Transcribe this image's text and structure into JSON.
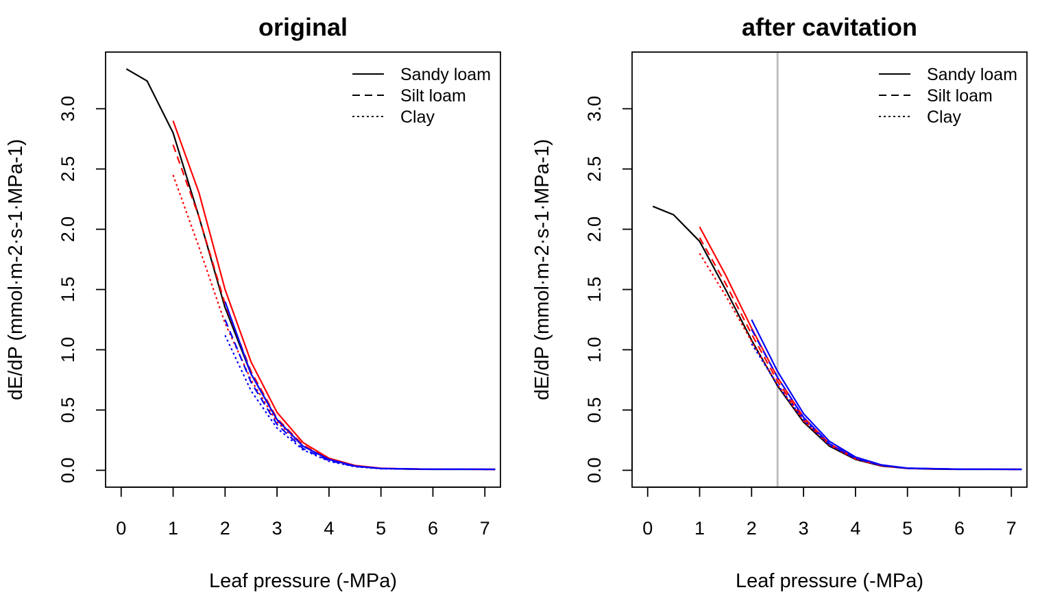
{
  "chart_data": [
    {
      "type": "line",
      "title": "original",
      "xlabel": "Leaf pressure (-MPa)",
      "ylabel": "dE/dP (mmol·m-2·s-1·MPa-1)",
      "xlim": [
        -0.3,
        7.3
      ],
      "ylim": [
        -0.14,
        3.47
      ],
      "xticks": [
        "0",
        "1",
        "2",
        "3",
        "4",
        "5",
        "6",
        "7"
      ],
      "yticks": [
        "0.0",
        "0.5",
        "1.0",
        "1.5",
        "2.0",
        "2.5",
        "3.0"
      ],
      "legend": {
        "position": "top-right",
        "entries": [
          {
            "label": "Sandy loam",
            "linestyle": "solid"
          },
          {
            "label": "Silt loam",
            "linestyle": "dashed"
          },
          {
            "label": "Clay",
            "linestyle": "dotted"
          }
        ]
      },
      "series": [
        {
          "color": "#000000",
          "linestyle": "solid",
          "x": [
            0.1,
            0.5,
            1,
            1.5,
            2,
            2.5,
            3,
            3.5,
            4,
            4.5,
            5,
            5.5,
            6,
            6.5,
            7.2
          ],
          "y": [
            3.33,
            3.23,
            2.8,
            2.1,
            1.35,
            0.8,
            0.42,
            0.2,
            0.09,
            0.035,
            0.015,
            0.01,
            0.008,
            0.008,
            0.008
          ]
        },
        {
          "color": "#ff0000",
          "linestyle": "solid",
          "x": [
            1,
            1.5,
            2,
            2.5,
            3,
            3.5,
            4,
            4.5,
            5,
            5.5,
            6,
            7.2
          ],
          "y": [
            2.9,
            2.3,
            1.5,
            0.9,
            0.48,
            0.23,
            0.1,
            0.04,
            0.017,
            0.011,
            0.009,
            0.008
          ]
        },
        {
          "color": "#ff0000",
          "linestyle": "dashed",
          "x": [
            1,
            1.5,
            2,
            2.5,
            3,
            3.5,
            4,
            4.5,
            5,
            6,
            7.2
          ],
          "y": [
            2.7,
            2.1,
            1.38,
            0.82,
            0.43,
            0.21,
            0.09,
            0.035,
            0.015,
            0.009,
            0.008
          ]
        },
        {
          "color": "#ff0000",
          "linestyle": "dotted",
          "x": [
            1,
            1.5,
            2,
            2.5,
            3,
            3.5,
            4,
            4.5,
            5,
            6,
            7.2
          ],
          "y": [
            2.45,
            1.85,
            1.22,
            0.75,
            0.4,
            0.2,
            0.09,
            0.035,
            0.015,
            0.009,
            0.008
          ]
        },
        {
          "color": "#0000ff",
          "linestyle": "solid",
          "x": [
            2,
            2.5,
            3,
            3.5,
            4,
            4.5,
            5,
            6,
            7.2
          ],
          "y": [
            1.4,
            0.8,
            0.42,
            0.2,
            0.09,
            0.035,
            0.015,
            0.009,
            0.008
          ]
        },
        {
          "color": "#0000ff",
          "linestyle": "dashed",
          "x": [
            2,
            2.5,
            3,
            3.5,
            4,
            4.5,
            5,
            6,
            7.2
          ],
          "y": [
            1.25,
            0.73,
            0.38,
            0.18,
            0.08,
            0.032,
            0.014,
            0.009,
            0.008
          ]
        },
        {
          "color": "#0000ff",
          "linestyle": "dotted",
          "x": [
            2,
            2.5,
            3,
            3.5,
            4,
            4.5,
            5,
            6,
            7.2
          ],
          "y": [
            1.12,
            0.66,
            0.35,
            0.17,
            0.075,
            0.03,
            0.013,
            0.009,
            0.008
          ]
        }
      ]
    },
    {
      "type": "line",
      "title": "after cavitation",
      "xlabel": "Leaf pressure (-MPa)",
      "ylabel": "dE/dP (mmol·m-2·s-1·MPa-1)",
      "xlim": [
        -0.3,
        7.3
      ],
      "ylim": [
        -0.14,
        3.47
      ],
      "xticks": [
        "0",
        "1",
        "2",
        "3",
        "4",
        "5",
        "6",
        "7"
      ],
      "yticks": [
        "0.0",
        "0.5",
        "1.0",
        "1.5",
        "2.0",
        "2.5",
        "3.0"
      ],
      "vline": {
        "x": 2.5,
        "color": "#bebebe"
      },
      "legend": {
        "position": "top-right",
        "entries": [
          {
            "label": "Sandy loam",
            "linestyle": "solid"
          },
          {
            "label": "Silt loam",
            "linestyle": "dashed"
          },
          {
            "label": "Clay",
            "linestyle": "dotted"
          }
        ]
      },
      "series": [
        {
          "color": "#000000",
          "linestyle": "solid",
          "x": [
            0.1,
            0.5,
            1,
            1.5,
            2,
            2.5,
            3,
            3.5,
            4,
            4.5,
            5,
            5.5,
            6,
            6.5,
            7.2
          ],
          "y": [
            2.19,
            2.12,
            1.9,
            1.5,
            1.08,
            0.7,
            0.4,
            0.2,
            0.09,
            0.035,
            0.015,
            0.01,
            0.008,
            0.008,
            0.008
          ]
        },
        {
          "color": "#ff0000",
          "linestyle": "solid",
          "x": [
            1,
            1.5,
            2,
            2.5,
            3,
            3.5,
            4,
            4.5,
            5,
            6,
            7.2
          ],
          "y": [
            2.02,
            1.62,
            1.18,
            0.77,
            0.44,
            0.22,
            0.1,
            0.04,
            0.017,
            0.009,
            0.008
          ]
        },
        {
          "color": "#ff0000",
          "linestyle": "dashed",
          "x": [
            1,
            1.5,
            2,
            2.5,
            3,
            3.5,
            4,
            4.5,
            5,
            6,
            7.2
          ],
          "y": [
            1.93,
            1.55,
            1.13,
            0.74,
            0.42,
            0.21,
            0.095,
            0.038,
            0.016,
            0.009,
            0.008
          ]
        },
        {
          "color": "#ff0000",
          "linestyle": "dotted",
          "x": [
            1,
            1.5,
            2,
            2.5,
            3,
            3.5,
            4,
            4.5,
            5,
            6,
            7.2
          ],
          "y": [
            1.8,
            1.45,
            1.07,
            0.71,
            0.41,
            0.21,
            0.095,
            0.038,
            0.016,
            0.009,
            0.008
          ]
        },
        {
          "color": "#0000ff",
          "linestyle": "solid",
          "x": [
            2,
            2.5,
            3,
            3.5,
            4,
            4.5,
            5,
            6,
            7.2
          ],
          "y": [
            1.25,
            0.82,
            0.47,
            0.24,
            0.11,
            0.045,
            0.018,
            0.009,
            0.008
          ]
        },
        {
          "color": "#0000ff",
          "linestyle": "dashed",
          "x": [
            2,
            2.5,
            3,
            3.5,
            4,
            4.5,
            5,
            6,
            7.2
          ],
          "y": [
            1.17,
            0.77,
            0.44,
            0.22,
            0.1,
            0.042,
            0.017,
            0.009,
            0.008
          ]
        },
        {
          "color": "#0000ff",
          "linestyle": "dotted",
          "x": [
            2,
            2.5,
            3,
            3.5,
            4,
            4.5,
            5,
            6,
            7.2
          ],
          "y": [
            1.05,
            0.71,
            0.42,
            0.21,
            0.098,
            0.04,
            0.016,
            0.009,
            0.008
          ]
        }
      ]
    }
  ]
}
